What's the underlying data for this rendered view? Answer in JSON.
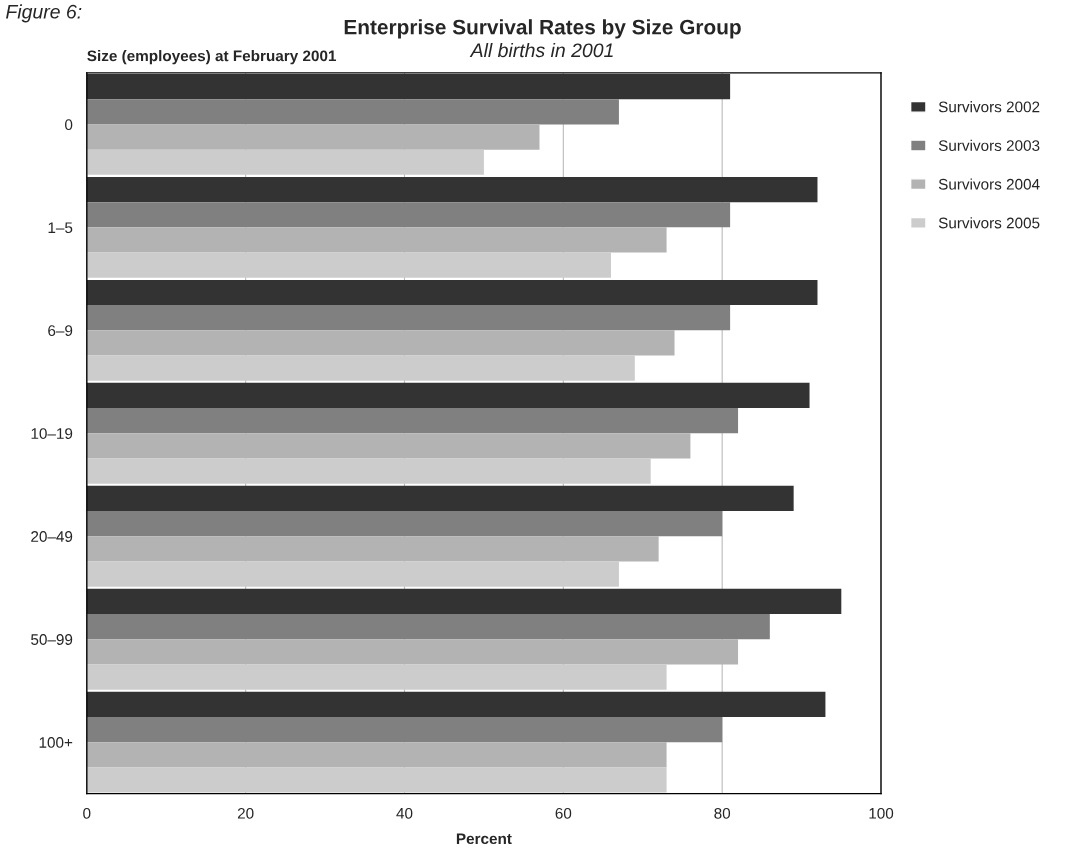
{
  "chart_data": {
    "type": "bar",
    "orientation": "horizontal",
    "title": "Enterprise Survival Rates by Size Group",
    "subtitle": "All births in 2001",
    "ylabel": "Size (employees) at February 2001",
    "xlabel": "Percent",
    "annotations": [
      "Figure 6:"
    ],
    "categories": [
      "0",
      "1–5",
      "6–9",
      "10–19",
      "20–49",
      "50–99",
      "100+"
    ],
    "series": [
      {
        "name": "Survivors 2002",
        "color": "#333333",
        "values": [
          81,
          92,
          92,
          91,
          89,
          95,
          93
        ]
      },
      {
        "name": "Survivors 2003",
        "color": "#808080",
        "values": [
          67,
          81,
          81,
          82,
          80,
          86,
          80
        ]
      },
      {
        "name": "Survivors 2004",
        "color": "#b3b3b3",
        "values": [
          57,
          73,
          74,
          76,
          72,
          82,
          73
        ]
      },
      {
        "name": "Survivors 2005",
        "color": "#cccccc",
        "values": [
          50,
          66,
          69,
          71,
          67,
          73,
          73
        ]
      }
    ],
    "xlim": [
      0,
      100
    ],
    "xticks": [
      0,
      20,
      40,
      60,
      80,
      100
    ],
    "grid": "x",
    "legend": "right"
  }
}
